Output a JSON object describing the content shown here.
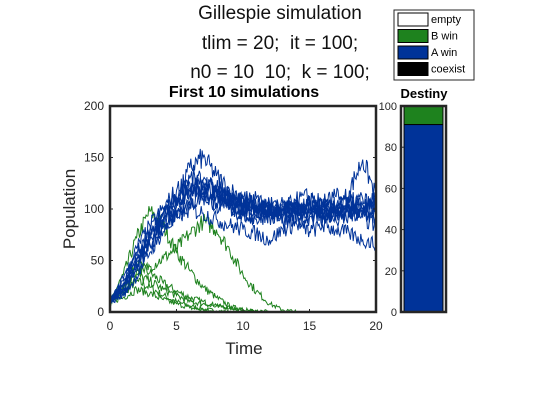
{
  "figure": {
    "title_lines": [
      "Gillespie simulation",
      "tlim = 20;  it = 100;",
      "n0 = 10  10;  k = 100;"
    ]
  },
  "colors": {
    "empty": "#ffffff",
    "b_win": "#1e821e",
    "a_win": "#003399",
    "coexist": "#000000",
    "axis": "#262626"
  },
  "chart_data": [
    {
      "type": "line",
      "title": "First 10 simulations",
      "xlabel": "Time",
      "ylabel": "Population",
      "xlim": [
        0,
        20
      ],
      "ylim": [
        0,
        200
      ],
      "xticks": [
        0,
        5,
        10,
        15,
        20
      ],
      "yticks": [
        0,
        50,
        100,
        150,
        200
      ],
      "grid": false,
      "series": [
        {
          "color": "#003399",
          "x": [
            0,
            1,
            2,
            3,
            4,
            5,
            6,
            7,
            8,
            9,
            10,
            11,
            12,
            13,
            14,
            15,
            16,
            17,
            18,
            19,
            20
          ],
          "y": [
            10,
            28,
            55,
            78,
            96,
            112,
            125,
            118,
            122,
            108,
            102,
            96,
            104,
            92,
            98,
            105,
            94,
            102,
            108,
            98,
            100
          ]
        },
        {
          "color": "#003399",
          "x": [
            0,
            1,
            2,
            3,
            4,
            5,
            6,
            7,
            8,
            9,
            10,
            11,
            12,
            13,
            14,
            15,
            16,
            17,
            18,
            19,
            20
          ],
          "y": [
            10,
            22,
            48,
            72,
            90,
            108,
            140,
            150,
            132,
            118,
            112,
            104,
            100,
            96,
            102,
            108,
            100,
            96,
            118,
            148,
            112
          ]
        },
        {
          "color": "#003399",
          "x": [
            0,
            1,
            2,
            3,
            4,
            5,
            6,
            7,
            8,
            9,
            10,
            11,
            12,
            13,
            14,
            15,
            16,
            17,
            18,
            19,
            20
          ],
          "y": [
            10,
            18,
            40,
            66,
            86,
            98,
            104,
            112,
            106,
            100,
            94,
            90,
            96,
            88,
            86,
            92,
            98,
            88,
            92,
            96,
            90
          ]
        },
        {
          "color": "#003399",
          "x": [
            0,
            1,
            2,
            3,
            4,
            5,
            6,
            7,
            8,
            9,
            10,
            11,
            12,
            13,
            14,
            15,
            16,
            17,
            18,
            19,
            20
          ],
          "y": [
            10,
            30,
            62,
            84,
            100,
            118,
            130,
            126,
            116,
            110,
            104,
            110,
            98,
            104,
            96,
            100,
            106,
            112,
            104,
            100,
            104
          ]
        },
        {
          "color": "#003399",
          "x": [
            0,
            1,
            2,
            3,
            4,
            5,
            6,
            7,
            8,
            9,
            10,
            11,
            12,
            13,
            14,
            15,
            16,
            17,
            18,
            19,
            20
          ],
          "y": [
            10,
            16,
            34,
            58,
            78,
            92,
            100,
            96,
            90,
            84,
            80,
            76,
            70,
            80,
            86,
            78,
            84,
            80,
            76,
            70,
            66
          ]
        },
        {
          "color": "#003399",
          "x": [
            0,
            1,
            2,
            3,
            4,
            5,
            6,
            7,
            8,
            9,
            10,
            11,
            12,
            13,
            14,
            15,
            16,
            17,
            18,
            19,
            20
          ],
          "y": [
            10,
            26,
            52,
            74,
            92,
            104,
            114,
            124,
            116,
            104,
            96,
            102,
            106,
            98,
            108,
            112,
            104,
            98,
            106,
            110,
            98
          ]
        },
        {
          "color": "#003399",
          "x": [
            0,
            1,
            2,
            3,
            4,
            5,
            6,
            7,
            8,
            9,
            10,
            11,
            12,
            13,
            14,
            15,
            16,
            17,
            18,
            19,
            20
          ],
          "y": [
            10,
            20,
            44,
            64,
            82,
            96,
            108,
            112,
            104,
            110,
            98,
            92,
            100,
            102,
            94,
            98,
            102,
            94,
            98,
            92,
            84
          ]
        },
        {
          "color": "#003399",
          "x": [
            0,
            1,
            2,
            3,
            4,
            5,
            6,
            7,
            8,
            9,
            10,
            11,
            12,
            13,
            14,
            15,
            16,
            17,
            18,
            19,
            20
          ],
          "y": [
            10,
            24,
            50,
            70,
            88,
            102,
            118,
            128,
            120,
            112,
            106,
            98,
            94,
            100,
            106,
            96,
            90,
            100,
            96,
            104,
            108
          ]
        },
        {
          "color": "#003399",
          "x": [
            0,
            1,
            2,
            3,
            4,
            5,
            6,
            7,
            8,
            9,
            10,
            11,
            12,
            13,
            14,
            15,
            16,
            17,
            18,
            19,
            20
          ],
          "y": [
            10,
            32,
            58,
            80,
            94,
            106,
            120,
            116,
            112,
            106,
            110,
            104,
            92,
            98,
            100,
            94,
            98,
            104,
            100,
            96,
            102
          ]
        },
        {
          "color": "#1e821e",
          "x": [
            0,
            1,
            2,
            3,
            4,
            5,
            6,
            7,
            8,
            9,
            10,
            11,
            12,
            13,
            14,
            15,
            16,
            17,
            18,
            19,
            20
          ],
          "y": [
            10,
            18,
            30,
            24,
            16,
            10,
            6,
            3,
            1,
            0,
            0,
            0,
            0,
            0,
            0,
            0,
            0,
            0,
            0,
            0,
            0
          ]
        },
        {
          "color": "#1e821e",
          "x": [
            0,
            1,
            2,
            3,
            4,
            5,
            6,
            7,
            8,
            9,
            10,
            11,
            12,
            13,
            14,
            15,
            16,
            17,
            18,
            19,
            20
          ],
          "y": [
            10,
            26,
            46,
            38,
            28,
            20,
            14,
            10,
            6,
            4,
            2,
            0,
            0,
            0,
            0,
            0,
            0,
            0,
            0,
            0,
            0
          ]
        },
        {
          "color": "#1e821e",
          "x": [
            0,
            1,
            2,
            3,
            4,
            5,
            6,
            7,
            8,
            9,
            10,
            11,
            12,
            13,
            14,
            15,
            16,
            17,
            18,
            19,
            20
          ],
          "y": [
            10,
            36,
            72,
            98,
            84,
            58,
            40,
            24,
            14,
            6,
            2,
            0,
            0,
            0,
            0,
            0,
            0,
            0,
            0,
            0,
            0
          ]
        },
        {
          "color": "#1e821e",
          "x": [
            0,
            1,
            2,
            3,
            4,
            5,
            6,
            7,
            8,
            9,
            10,
            11,
            12,
            13,
            14,
            15,
            16,
            17,
            18,
            19,
            20
          ],
          "y": [
            10,
            14,
            22,
            18,
            12,
            8,
            4,
            2,
            0,
            0,
            0,
            0,
            0,
            0,
            0,
            0,
            0,
            0,
            0,
            0,
            0
          ]
        },
        {
          "color": "#1e821e",
          "x": [
            0,
            1,
            2,
            3,
            4,
            5,
            6,
            7,
            8,
            9,
            10,
            11,
            12,
            13,
            14,
            15,
            16,
            17,
            18,
            19,
            20
          ],
          "y": [
            10,
            20,
            36,
            30,
            22,
            16,
            10,
            8,
            6,
            4,
            2,
            1,
            0,
            0,
            0,
            0,
            0,
            0,
            0,
            0,
            0
          ]
        },
        {
          "color": "#1e821e",
          "x": [
            0,
            1,
            2,
            3,
            4,
            5,
            6,
            7,
            8,
            9,
            10,
            11,
            12,
            13,
            14,
            15,
            16,
            17,
            18,
            19,
            20
          ],
          "y": [
            10,
            24,
            40,
            44,
            52,
            62,
            76,
            88,
            80,
            60,
            36,
            20,
            8,
            2,
            0,
            0,
            0,
            0,
            0,
            0,
            0
          ]
        }
      ]
    },
    {
      "type": "bar",
      "title": "Destiny",
      "ylim": [
        0,
        100
      ],
      "yticks": [
        0,
        20,
        40,
        60,
        80,
        100
      ],
      "stacked": true,
      "segments": [
        {
          "name": "empty",
          "value": 0
        },
        {
          "name": "A win",
          "value": 91
        },
        {
          "name": "B win",
          "value": 9
        },
        {
          "name": "coexist",
          "value": 0
        }
      ],
      "legend": {
        "placement": "top-right",
        "entries": [
          "empty",
          "B win",
          "A win",
          "coexist"
        ]
      }
    }
  ]
}
